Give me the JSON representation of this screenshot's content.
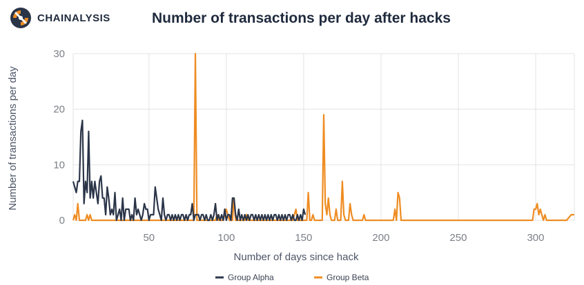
{
  "brand": {
    "name": "CHAINALYSIS",
    "logo_icon": "chainalysis-logo-icon",
    "color_dark": "#2b3548",
    "color_orange": "#ef8c22"
  },
  "chart_data": {
    "type": "line",
    "title": "Number of transactions per day after hacks",
    "xlabel": "Number of days since hack",
    "ylabel": "Number of transactions per day",
    "xlim": [
      1,
      325
    ],
    "ylim": [
      0,
      30
    ],
    "xticks": [
      50,
      100,
      150,
      200,
      250,
      300
    ],
    "yticks": [
      0,
      10,
      20,
      30
    ],
    "grid": true,
    "legend_position": "bottom-center",
    "series": [
      {
        "name": "Group Alpha",
        "color": "#2b3548",
        "points": [
          [
            1,
            7
          ],
          [
            2,
            6
          ],
          [
            3,
            5
          ],
          [
            4,
            7
          ],
          [
            5,
            7
          ],
          [
            6,
            16
          ],
          [
            7,
            18
          ],
          [
            8,
            3
          ],
          [
            9,
            7
          ],
          [
            10,
            5
          ],
          [
            11,
            16
          ],
          [
            12,
            4
          ],
          [
            13,
            7
          ],
          [
            14,
            4
          ],
          [
            15,
            7
          ],
          [
            16,
            5
          ],
          [
            17,
            3
          ],
          [
            18,
            7
          ],
          [
            19,
            8
          ],
          [
            20,
            4
          ],
          [
            21,
            4
          ],
          [
            22,
            1
          ],
          [
            23,
            6
          ],
          [
            24,
            4
          ],
          [
            25,
            1
          ],
          [
            26,
            2
          ],
          [
            27,
            1
          ],
          [
            28,
            5
          ],
          [
            29,
            0
          ],
          [
            30,
            1
          ],
          [
            31,
            2
          ],
          [
            32,
            0
          ],
          [
            33,
            4
          ],
          [
            34,
            0
          ],
          [
            35,
            2
          ],
          [
            36,
            2
          ],
          [
            37,
            2
          ],
          [
            38,
            0
          ],
          [
            39,
            1
          ],
          [
            40,
            0
          ],
          [
            41,
            4
          ],
          [
            42,
            1
          ],
          [
            43,
            2
          ],
          [
            44,
            1
          ],
          [
            45,
            0
          ],
          [
            46,
            1
          ],
          [
            47,
            3
          ],
          [
            48,
            2
          ],
          [
            49,
            2
          ],
          [
            50,
            0
          ],
          [
            51,
            1
          ],
          [
            52,
            1
          ],
          [
            53,
            1
          ],
          [
            54,
            6
          ],
          [
            55,
            4
          ],
          [
            56,
            2
          ],
          [
            57,
            1
          ],
          [
            58,
            0
          ],
          [
            59,
            4
          ],
          [
            60,
            1
          ],
          [
            61,
            0
          ],
          [
            62,
            1
          ],
          [
            63,
            1
          ],
          [
            64,
            0
          ],
          [
            65,
            1
          ],
          [
            66,
            0
          ],
          [
            67,
            1
          ],
          [
            68,
            0
          ],
          [
            69,
            1
          ],
          [
            70,
            0
          ],
          [
            71,
            1
          ],
          [
            72,
            1
          ],
          [
            73,
            0
          ],
          [
            74,
            1
          ],
          [
            75,
            0
          ],
          [
            76,
            1
          ],
          [
            77,
            1
          ],
          [
            78,
            3
          ],
          [
            79,
            0
          ],
          [
            80,
            1
          ],
          [
            81,
            1
          ],
          [
            82,
            1
          ],
          [
            83,
            0
          ],
          [
            84,
            1
          ],
          [
            85,
            1
          ],
          [
            86,
            0
          ],
          [
            87,
            1
          ],
          [
            88,
            0
          ],
          [
            89,
            0
          ],
          [
            90,
            1
          ],
          [
            91,
            0
          ],
          [
            92,
            1
          ],
          [
            93,
            3
          ],
          [
            94,
            0
          ],
          [
            95,
            1
          ],
          [
            96,
            0
          ],
          [
            97,
            1
          ],
          [
            98,
            0
          ],
          [
            99,
            2
          ],
          [
            100,
            0
          ],
          [
            101,
            1
          ],
          [
            102,
            1
          ],
          [
            103,
            0
          ],
          [
            104,
            4
          ],
          [
            105,
            4
          ],
          [
            106,
            1
          ],
          [
            107,
            0
          ],
          [
            108,
            2
          ],
          [
            109,
            0
          ],
          [
            110,
            1
          ],
          [
            111,
            0
          ],
          [
            112,
            1
          ],
          [
            113,
            0
          ],
          [
            114,
            1
          ],
          [
            115,
            0
          ],
          [
            116,
            1
          ],
          [
            117,
            1
          ],
          [
            118,
            0
          ],
          [
            119,
            1
          ],
          [
            120,
            0
          ],
          [
            121,
            1
          ],
          [
            122,
            0
          ],
          [
            123,
            1
          ],
          [
            124,
            0
          ],
          [
            125,
            1
          ],
          [
            126,
            0
          ],
          [
            127,
            1
          ],
          [
            128,
            0
          ],
          [
            129,
            1
          ],
          [
            130,
            0
          ],
          [
            131,
            1
          ],
          [
            132,
            1
          ],
          [
            133,
            0
          ],
          [
            134,
            1
          ],
          [
            135,
            0
          ],
          [
            136,
            1
          ],
          [
            137,
            0
          ],
          [
            138,
            1
          ],
          [
            139,
            0
          ],
          [
            140,
            1
          ],
          [
            141,
            1
          ],
          [
            142,
            0
          ],
          [
            143,
            1
          ],
          [
            144,
            0
          ],
          [
            145,
            0
          ],
          [
            146,
            1
          ],
          [
            147,
            0
          ],
          [
            148,
            1
          ],
          [
            149,
            0
          ],
          [
            150,
            2
          ],
          [
            151,
            1
          ]
        ]
      },
      {
        "name": "Group Beta",
        "color": "#ef8c22",
        "points": [
          [
            1,
            0
          ],
          [
            2,
            1
          ],
          [
            3,
            0
          ],
          [
            4,
            3
          ],
          [
            5,
            0
          ],
          [
            6,
            0
          ],
          [
            7,
            0
          ],
          [
            8,
            0
          ],
          [
            9,
            0
          ],
          [
            10,
            1
          ],
          [
            11,
            0
          ],
          [
            12,
            1
          ],
          [
            13,
            0
          ],
          [
            14,
            0
          ],
          [
            70,
            0
          ],
          [
            75,
            0
          ],
          [
            78,
            0
          ],
          [
            79,
            0
          ],
          [
            80,
            30
          ],
          [
            81,
            0
          ],
          [
            82,
            0
          ],
          [
            84,
            0
          ],
          [
            90,
            0
          ],
          [
            93,
            0
          ],
          [
            94,
            1
          ],
          [
            95,
            0
          ],
          [
            98,
            0
          ],
          [
            100,
            2
          ],
          [
            101,
            1
          ],
          [
            102,
            0
          ],
          [
            104,
            0
          ],
          [
            105,
            4
          ],
          [
            106,
            0
          ],
          [
            108,
            0
          ],
          [
            110,
            0
          ],
          [
            112,
            0
          ],
          [
            113,
            1
          ],
          [
            114,
            0
          ],
          [
            116,
            0
          ],
          [
            140,
            0
          ],
          [
            143,
            0
          ],
          [
            144,
            1
          ],
          [
            145,
            2
          ],
          [
            146,
            0
          ],
          [
            150,
            0
          ],
          [
            152,
            0
          ],
          [
            153,
            5
          ],
          [
            154,
            0
          ],
          [
            155,
            0
          ],
          [
            156,
            1
          ],
          [
            157,
            0
          ],
          [
            160,
            0
          ],
          [
            162,
            0
          ],
          [
            163,
            19
          ],
          [
            164,
            3
          ],
          [
            165,
            1
          ],
          [
            166,
            4
          ],
          [
            167,
            1
          ],
          [
            168,
            0
          ],
          [
            170,
            0
          ],
          [
            171,
            2
          ],
          [
            172,
            0
          ],
          [
            174,
            0
          ],
          [
            175,
            7
          ],
          [
            176,
            1
          ],
          [
            177,
            0
          ],
          [
            179,
            0
          ],
          [
            180,
            3
          ],
          [
            181,
            1
          ],
          [
            182,
            0
          ],
          [
            185,
            0
          ],
          [
            188,
            0
          ],
          [
            189,
            1
          ],
          [
            190,
            0
          ],
          [
            194,
            0
          ],
          [
            205,
            0
          ],
          [
            208,
            0
          ],
          [
            209,
            2
          ],
          [
            210,
            0
          ],
          [
            211,
            5
          ],
          [
            212,
            4
          ],
          [
            213,
            0
          ],
          [
            215,
            0
          ],
          [
            290,
            0
          ],
          [
            298,
            0
          ],
          [
            299,
            2
          ],
          [
            300,
            2
          ],
          [
            301,
            3
          ],
          [
            302,
            1
          ],
          [
            303,
            2
          ],
          [
            304,
            1
          ],
          [
            305,
            0
          ],
          [
            306,
            1
          ],
          [
            307,
            0
          ],
          [
            308,
            0
          ],
          [
            320,
            0
          ],
          [
            323,
            1
          ],
          [
            325,
            1
          ]
        ]
      }
    ]
  }
}
